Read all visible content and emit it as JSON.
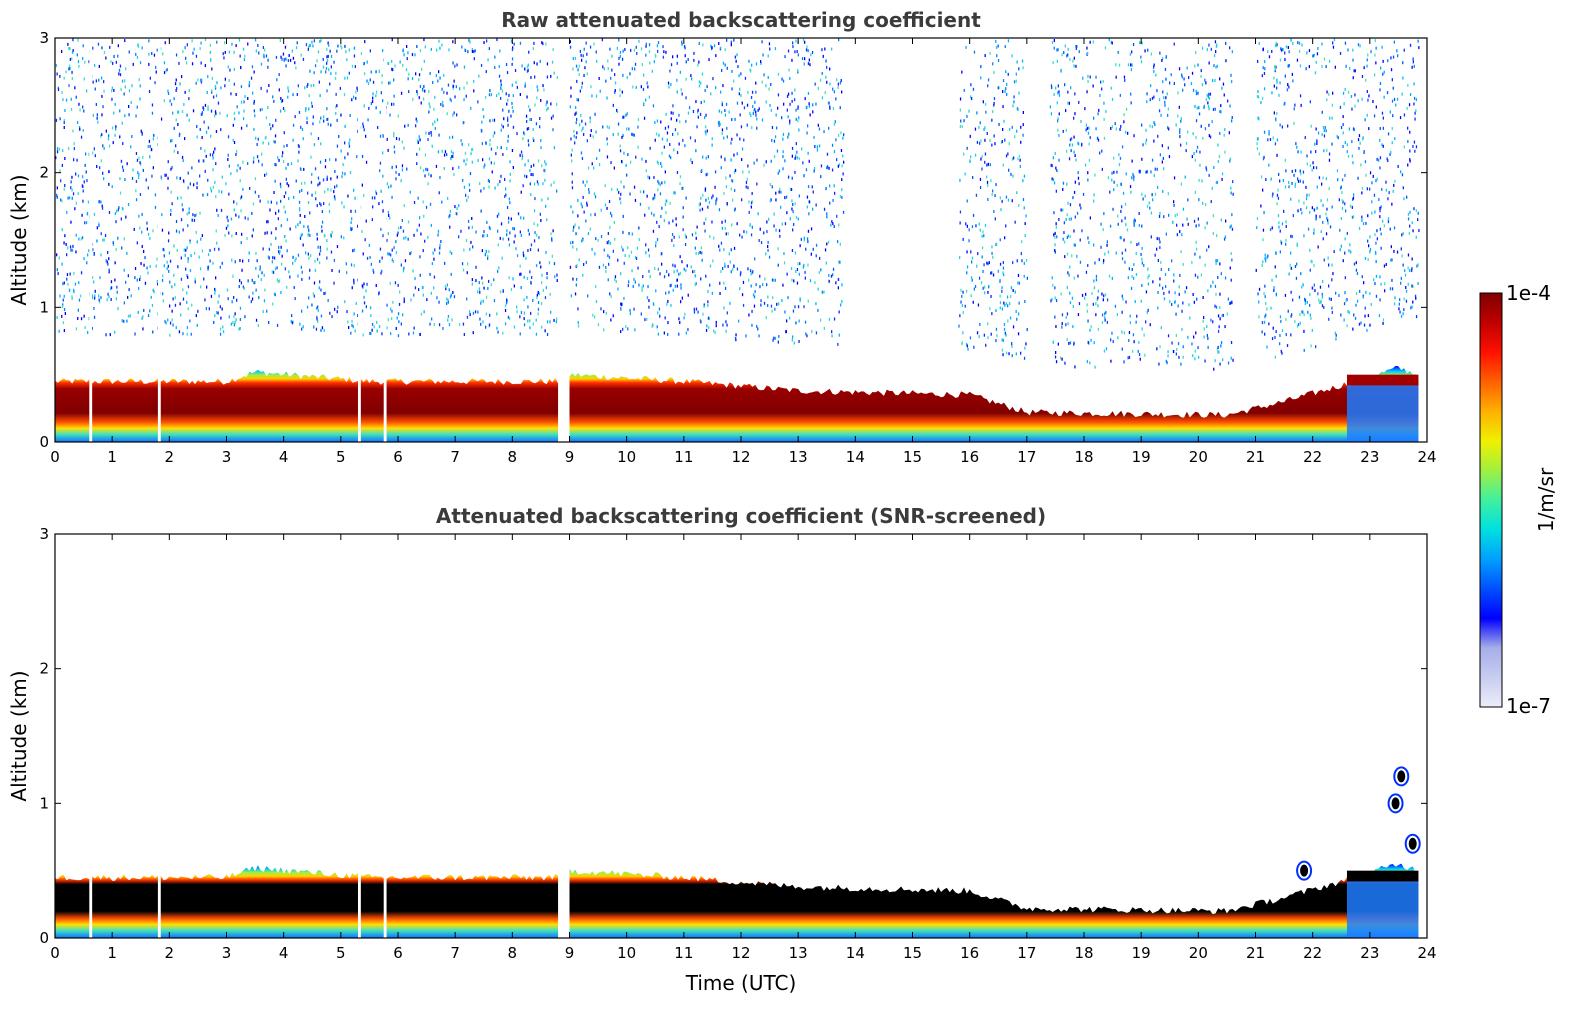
{
  "colorbar": {
    "min_label": "1e-7",
    "max_label": "1e-4",
    "unit_label": "1/m/sr",
    "colormap": [
      "#eceefa",
      "#c8cdf0",
      "#a6aee8",
      "#0000ff",
      "#0050ff",
      "#00a0ff",
      "#00e0e0",
      "#40f0a0",
      "#a0f040",
      "#f0f000",
      "#ffb000",
      "#ff6000",
      "#ff1000",
      "#c00000",
      "#800000"
    ]
  },
  "chart_data": [
    {
      "type": "heatmap",
      "title": "Raw attenuated backscattering coefficient",
      "xlabel": "",
      "ylabel": "Altitude (km)",
      "xlim": [
        0,
        24
      ],
      "ylim": [
        0,
        3
      ],
      "xticks": [
        "0",
        "1",
        "2",
        "3",
        "4",
        "5",
        "6",
        "7",
        "8",
        "9",
        "10",
        "11",
        "12",
        "13",
        "14",
        "15",
        "16",
        "17",
        "18",
        "19",
        "20",
        "21",
        "22",
        "23",
        "24"
      ],
      "yticks": [
        "0",
        "1",
        "2",
        "3"
      ],
      "value_range": [
        1e-07,
        0.0001
      ],
      "layer_top_km": [
        [
          0,
          0.45
        ],
        [
          3,
          0.45
        ],
        [
          3.5,
          0.52
        ],
        [
          5.5,
          0.45
        ],
        [
          8.8,
          0.45
        ],
        [
          9,
          0.5
        ],
        [
          11,
          0.45
        ],
        [
          13,
          0.38
        ],
        [
          16,
          0.35
        ],
        [
          17,
          0.22
        ],
        [
          20.5,
          0.2
        ],
        [
          21.5,
          0.3
        ],
        [
          22.5,
          0.42
        ],
        [
          23.5,
          0.55
        ],
        [
          23.85,
          0.5
        ]
      ],
      "data_gaps_hours": [
        [
          8.8,
          9.0
        ],
        [
          0.6,
          0.65
        ],
        [
          1.8,
          1.85
        ],
        [
          5.3,
          5.35
        ],
        [
          5.75,
          5.8
        ]
      ],
      "noisy_upper_regions_hours": [
        [
          0,
          8.8
        ],
        [
          9,
          13.8
        ],
        [
          15.8,
          17
        ],
        [
          17.4,
          20.6
        ],
        [
          21,
          23.85
        ]
      ]
    },
    {
      "type": "heatmap",
      "title": "Attenuated backscattering coefficient (SNR-screened)",
      "xlabel": "Time (UTC)",
      "ylabel": "Altitude (km)",
      "xlim": [
        0,
        24
      ],
      "ylim": [
        0,
        3
      ],
      "xticks": [
        "0",
        "1",
        "2",
        "3",
        "4",
        "5",
        "6",
        "7",
        "8",
        "9",
        "10",
        "11",
        "12",
        "13",
        "14",
        "15",
        "16",
        "17",
        "18",
        "19",
        "20",
        "21",
        "22",
        "23",
        "24"
      ],
      "yticks": [
        "0",
        "1",
        "2",
        "3"
      ],
      "value_range": [
        1e-07,
        0.0001
      ],
      "layer_top_km": [
        [
          0,
          0.45
        ],
        [
          3,
          0.45
        ],
        [
          3.5,
          0.52
        ],
        [
          5.5,
          0.45
        ],
        [
          8.8,
          0.45
        ],
        [
          9,
          0.5
        ],
        [
          11,
          0.45
        ],
        [
          13,
          0.38
        ],
        [
          16,
          0.35
        ],
        [
          17,
          0.22
        ],
        [
          20.5,
          0.2
        ],
        [
          21.5,
          0.3
        ],
        [
          22.5,
          0.42
        ],
        [
          23.5,
          0.55
        ],
        [
          23.85,
          0.5
        ]
      ],
      "cloud_features": [
        {
          "time": 23.55,
          "alt": 1.2
        },
        {
          "time": 23.45,
          "alt": 1.0
        },
        {
          "time": 23.75,
          "alt": 0.7
        },
        {
          "time": 21.85,
          "alt": 0.5
        }
      ]
    }
  ]
}
